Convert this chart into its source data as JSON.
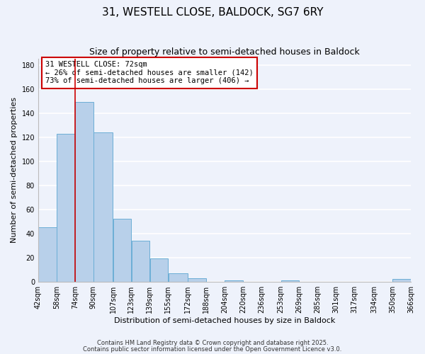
{
  "title": "31, WESTELL CLOSE, BALDOCK, SG7 6RY",
  "subtitle": "Size of property relative to semi-detached houses in Baldock",
  "xlabel": "Distribution of semi-detached houses by size in Baldock",
  "ylabel": "Number of semi-detached properties",
  "bar_left_edges": [
    42,
    58,
    74,
    90,
    107,
    123,
    139,
    155,
    172,
    188,
    204,
    220,
    236,
    253,
    269,
    285,
    301,
    317,
    334,
    350
  ],
  "bar_widths": [
    16,
    16,
    16,
    17,
    16,
    16,
    16,
    17,
    16,
    16,
    16,
    16,
    17,
    16,
    16,
    16,
    16,
    17,
    16,
    16
  ],
  "bar_heights": [
    45,
    123,
    149,
    124,
    52,
    34,
    19,
    7,
    3,
    0,
    1,
    0,
    0,
    1,
    0,
    0,
    0,
    0,
    0,
    2
  ],
  "tick_labels": [
    "42sqm",
    "58sqm",
    "74sqm",
    "90sqm",
    "107sqm",
    "123sqm",
    "139sqm",
    "155sqm",
    "172sqm",
    "188sqm",
    "204sqm",
    "220sqm",
    "236sqm",
    "253sqm",
    "269sqm",
    "285sqm",
    "301sqm",
    "317sqm",
    "334sqm",
    "350sqm",
    "366sqm"
  ],
  "bar_color": "#b8d0ea",
  "bar_edge_color": "#6baed6",
  "property_line_x": 74,
  "property_line_color": "#cc0000",
  "annotation_box_text": "31 WESTELL CLOSE: 72sqm\n← 26% of semi-detached houses are smaller (142)\n73% of semi-detached houses are larger (406) →",
  "ylim": [
    0,
    185
  ],
  "yticks": [
    0,
    20,
    40,
    60,
    80,
    100,
    120,
    140,
    160,
    180
  ],
  "bg_color": "#eef2fb",
  "grid_color": "#ffffff",
  "footer_line1": "Contains HM Land Registry data © Crown copyright and database right 2025.",
  "footer_line2": "Contains public sector information licensed under the Open Government Licence v3.0.",
  "title_fontsize": 11,
  "subtitle_fontsize": 9,
  "label_fontsize": 8,
  "tick_fontsize": 7,
  "annotation_fontsize": 7.5,
  "footer_fontsize": 6
}
